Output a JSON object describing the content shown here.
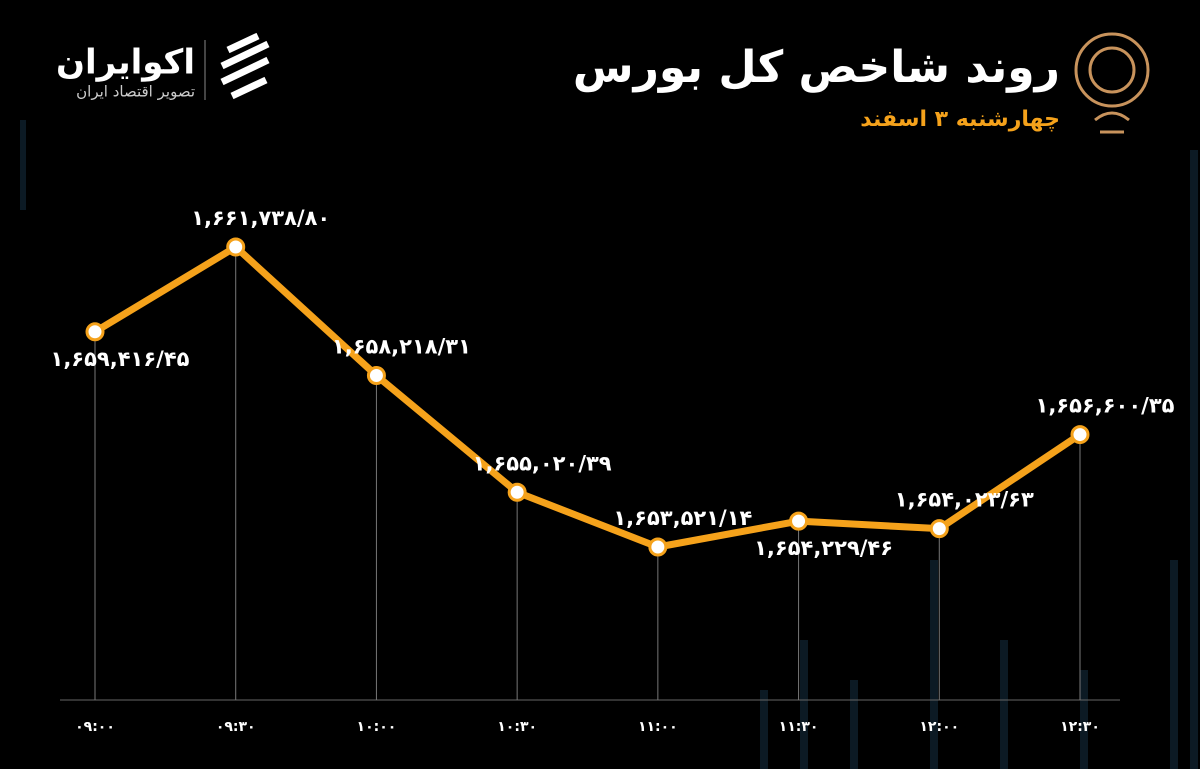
{
  "logo": {
    "name": "اکوایران",
    "tagline": "تصویر اقتصاد ایران"
  },
  "chart_data": {
    "type": "line",
    "title": "روند شاخص کل بورس",
    "subtitle": "چهارشنبه ۳ اسفند",
    "categories": [
      "۰۹:۰۰",
      "۰۹:۳۰",
      "۱۰:۰۰",
      "۱۰:۳۰",
      "۱۱:۰۰",
      "۱۱:۳۰",
      "۱۲:۰۰",
      "۱۲:۳۰"
    ],
    "values": [
      1659416.45,
      1661738.8,
      1658218.31,
      1655020.39,
      1653521.14,
      1654229.46,
      1654023.63,
      1656600.35
    ],
    "value_labels": [
      "۱,۶۵۹,۴۱۶/۴۵",
      "۱,۶۶۱,۷۳۸/۸۰",
      "۱,۶۵۸,۲۱۸/۳۱",
      "۱,۶۵۵,۰۲۰/۳۹",
      "۱,۶۵۳,۵۲۱/۱۴",
      "۱,۶۵۴,۲۲۹/۴۶",
      "۱,۶۵۴,۰۲۳/۶۳",
      "۱,۶۵۶,۶۰۰/۳۵"
    ],
    "color": "#f5a21b"
  }
}
